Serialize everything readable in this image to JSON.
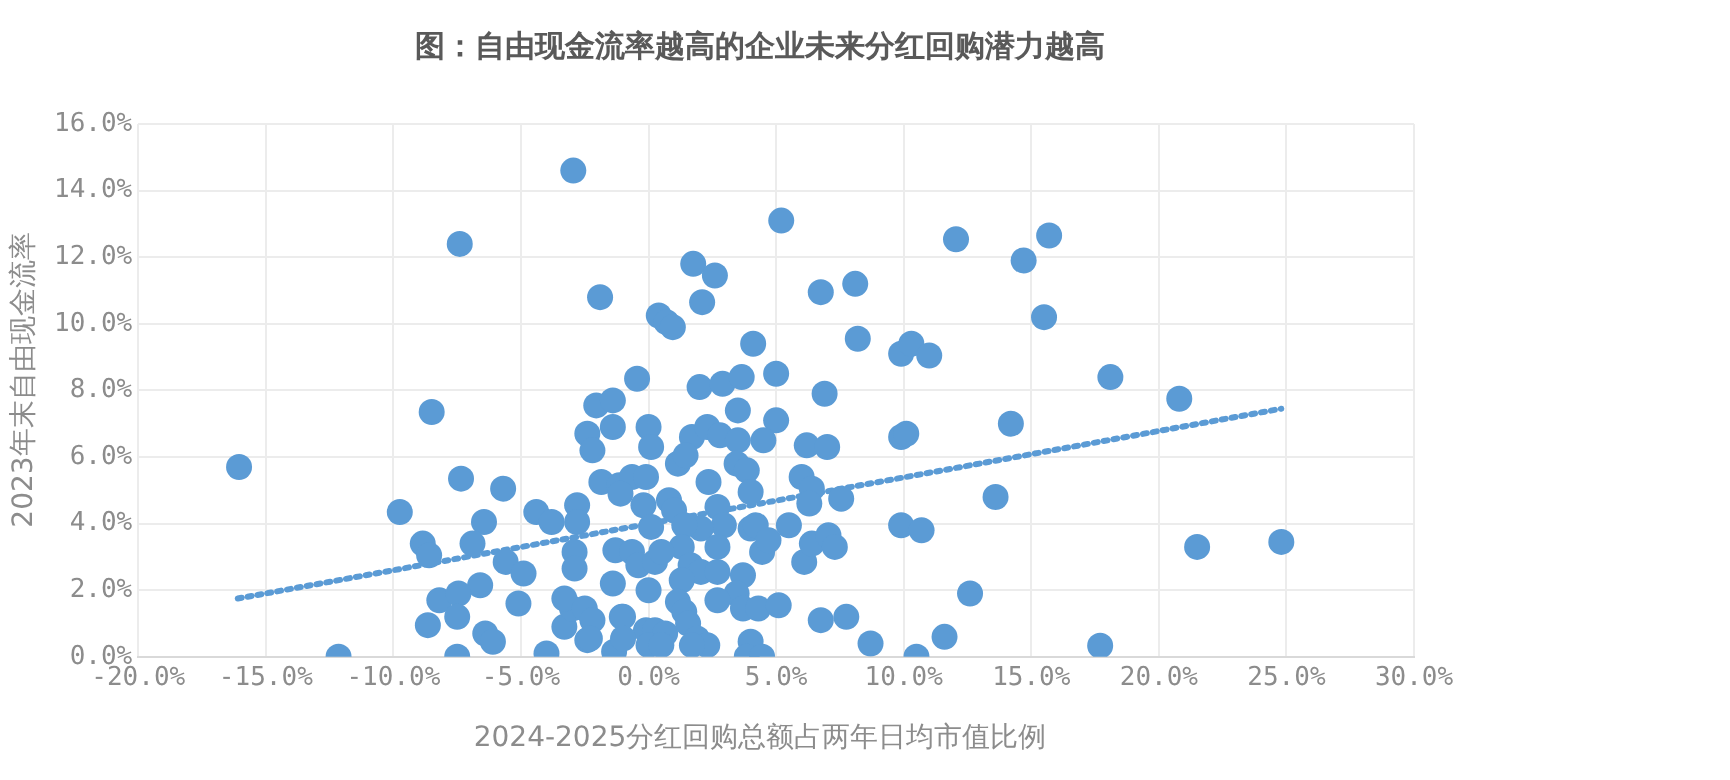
{
  "chart_data": {
    "type": "scatter",
    "title": "图：自由现金流率越高的企业未来分红回购潜力越高",
    "xlabel": "2024-2025分红回购总额占两年日均市值比例",
    "ylabel": "2023年末自由现金流率",
    "xlim": [
      -20,
      30
    ],
    "xticks": [
      {
        "value": -20,
        "label": "-20.0%"
      },
      {
        "value": -15,
        "label": "-15.0%"
      },
      {
        "value": -10,
        "label": "-10.0%"
      },
      {
        "value": -5,
        "label": "-5.0%"
      },
      {
        "value": 0,
        "label": "0.0%"
      },
      {
        "value": 5,
        "label": "5.0%"
      },
      {
        "value": 10,
        "label": "10.0%"
      },
      {
        "value": 15,
        "label": "15.0%"
      },
      {
        "value": 20,
        "label": "20.0%"
      },
      {
        "value": 25,
        "label": "25.0%"
      },
      {
        "value": 30,
        "label": "30.0%"
      }
    ],
    "ylim": [
      0,
      16
    ],
    "yticks": [
      {
        "value": 0,
        "label": "0.0%"
      },
      {
        "value": 2,
        "label": "2.0%"
      },
      {
        "value": 4,
        "label": "4.0%"
      },
      {
        "value": 6,
        "label": "6.0%"
      },
      {
        "value": 8,
        "label": "8.0%"
      },
      {
        "value": 10,
        "label": "10.0%"
      },
      {
        "value": 12,
        "label": "12.0%"
      },
      {
        "value": 14,
        "label": "14.0%"
      },
      {
        "value": 16,
        "label": "16.0%"
      }
    ],
    "grid": true,
    "marker": "circle",
    "series": [
      {
        "type": "scatter",
        "color": "#5b9bd5",
        "x": [
          12.05,
          15.7,
          14.7,
          15.5,
          18.1,
          20.8,
          14.2,
          13.6,
          21.5,
          24.8,
          12.6,
          11.6,
          17.7,
          10.5,
          9.9,
          10.3,
          11.0,
          9.9,
          10.1,
          9.9,
          10.7,
          -16.05,
          -12.15,
          -7.4,
          -8.5,
          -2.95,
          -1.9,
          -9.75,
          -7.35,
          -5.7,
          -6.45,
          -8.85,
          -8.6,
          -6.9,
          -5.6,
          -4.9,
          -6.6,
          -8.2,
          -7.45,
          -7.5,
          -5.1,
          -8.65,
          -6.4,
          -6.1,
          -7.5,
          -4.4,
          -3.8,
          -4.0,
          -3.3,
          -3.0,
          -3.3,
          -2.8,
          -2.8,
          -2.9,
          -2.9,
          -2.4,
          -2.2,
          -2.5,
          -2.2,
          -2.4,
          -2.05,
          -1.4,
          -1.4,
          -0.45,
          -1.85,
          -1.15,
          -0.65,
          -1.1,
          -1.3,
          -1.4,
          -1.35,
          -1.05,
          0.4,
          0.7,
          0.95,
          1.75,
          2.1,
          2.6,
          5.2,
          6.75,
          8.1,
          8.2,
          4.1,
          2.0,
          2.9,
          3.65,
          5.0,
          3.5,
          5.0,
          4.5,
          6.9,
          6.2,
          7.0,
          0.0,
          0.1,
          -0.1,
          -0.2,
          1.7,
          2.3,
          2.8,
          3.5,
          1.15,
          1.45,
          0.8,
          1.0,
          2.35,
          3.45,
          3.85,
          4.0,
          6.0,
          6.4,
          6.3,
          7.55,
          2.7,
          2.95,
          2.05,
          1.4,
          1.3,
          2.7,
          0.1,
          -0.65,
          -0.4,
          0.25,
          0.5,
          4.0,
          4.2,
          4.45,
          4.7,
          5.5,
          6.1,
          6.4,
          7.05,
          7.3,
          1.65,
          2.05,
          2.7,
          1.3,
          3.7,
          3.45,
          0.0,
          1.15,
          1.4,
          2.7,
          3.7,
          4.3,
          5.1,
          6.75,
          7.75,
          8.7,
          -0.1,
          0.25,
          0.65,
          0.0,
          0.5,
          1.55,
          1.9,
          2.3,
          1.7,
          4.0,
          3.85,
          4.45,
          -1.0,
          -1.0,
          -2.3
        ],
        "values": [
          12.54,
          12.65,
          11.9,
          10.2,
          8.4,
          7.75,
          7.0,
          4.8,
          3.3,
          3.45,
          1.9,
          0.6,
          0.33,
          0.0,
          9.1,
          9.4,
          9.05,
          6.6,
          6.7,
          3.95,
          3.8,
          5.7,
          0.0,
          12.4,
          7.35,
          14.6,
          10.8,
          4.35,
          5.35,
          5.05,
          4.05,
          3.4,
          3.05,
          3.4,
          2.85,
          2.5,
          2.15,
          1.7,
          1.9,
          1.2,
          1.6,
          0.95,
          0.7,
          0.45,
          0.0,
          4.35,
          4.05,
          0.1,
          0.9,
          1.45,
          1.75,
          4.55,
          4.05,
          3.15,
          2.65,
          6.7,
          6.2,
          1.45,
          1.1,
          0.5,
          7.55,
          7.7,
          6.9,
          8.35,
          5.25,
          5.15,
          5.4,
          4.9,
          3.2,
          2.2,
          0.15,
          1.2,
          10.25,
          10.05,
          9.9,
          11.8,
          10.65,
          11.45,
          13.1,
          10.95,
          11.2,
          9.55,
          9.4,
          8.1,
          8.2,
          8.4,
          8.5,
          7.4,
          7.1,
          6.5,
          7.9,
          6.35,
          6.3,
          6.9,
          6.3,
          5.4,
          4.55,
          6.6,
          6.9,
          6.65,
          6.5,
          5.8,
          6.05,
          4.7,
          4.4,
          5.25,
          5.8,
          5.6,
          4.95,
          5.4,
          5.05,
          4.6,
          4.75,
          4.5,
          3.95,
          3.85,
          3.95,
          3.3,
          3.3,
          3.9,
          3.15,
          2.75,
          2.85,
          3.15,
          3.85,
          3.95,
          3.15,
          3.5,
          3.95,
          2.85,
          3.4,
          3.65,
          3.3,
          2.75,
          2.55,
          2.55,
          2.3,
          2.45,
          1.9,
          2.0,
          1.65,
          1.35,
          1.7,
          1.45,
          1.45,
          1.55,
          1.1,
          1.2,
          0.4,
          0.8,
          0.8,
          0.7,
          0.35,
          0.35,
          1.0,
          0.55,
          0.35,
          0.35,
          0.45,
          0.0,
          0.0,
          1.2,
          0.55,
          0.55
        ]
      },
      {
        "type": "line",
        "color": "#5b9bd5",
        "x": [
          -16.1,
          24.8
        ],
        "values": [
          1.75,
          7.45
        ],
        "line_style": "dotted",
        "marker": "none"
      }
    ]
  }
}
